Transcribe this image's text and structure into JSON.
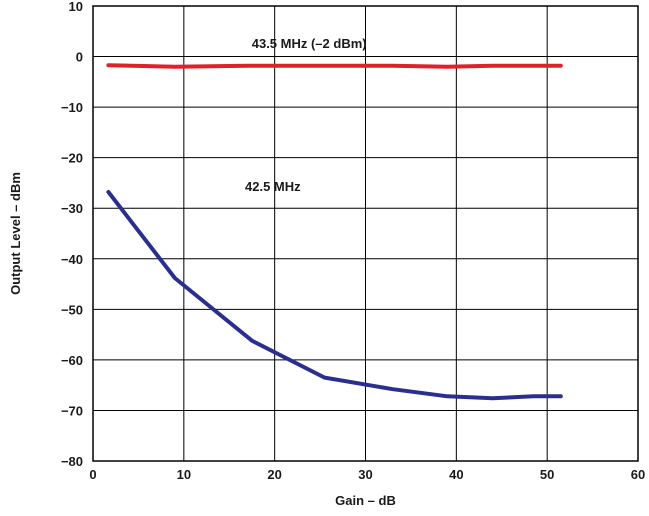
{
  "chart_data": {
    "type": "line",
    "title": "",
    "xlabel": "Gain – dB",
    "ylabel": "Output Level – dBm",
    "xlim": [
      0,
      60
    ],
    "ylim": [
      -80,
      10
    ],
    "x_ticks": [
      0,
      10,
      20,
      30,
      40,
      50,
      60
    ],
    "y_ticks": [
      10,
      0,
      -10,
      -20,
      -30,
      -40,
      -50,
      -60,
      -70,
      -80
    ],
    "x_tick_labels": [
      "0",
      "10",
      "20",
      "30",
      "40",
      "50",
      "60"
    ],
    "y_tick_labels": [
      "10",
      "0",
      "−10",
      "−20",
      "−30",
      "−40",
      "−50",
      "−60",
      "−70",
      "−80"
    ],
    "grid": true,
    "legend": "none",
    "series": [
      {
        "name": "43.5 MHz (–2 dBm)",
        "color": "#e0202a",
        "x": [
          1.7,
          9,
          17,
          25,
          33,
          39,
          44,
          51.5
        ],
        "y": [
          -1.7,
          -2.0,
          -1.8,
          -1.8,
          -1.8,
          -2.0,
          -1.8,
          -1.8
        ]
      },
      {
        "name": "42.5 MHz",
        "color": "#2a2f8f",
        "x": [
          1.7,
          9,
          17.5,
          25.5,
          33,
          39,
          44,
          48.5,
          51.5
        ],
        "y": [
          -26.8,
          -43.8,
          -56.2,
          -63.5,
          -65.8,
          -67.2,
          -67.6,
          -67.2,
          -67.2
        ]
      }
    ]
  }
}
